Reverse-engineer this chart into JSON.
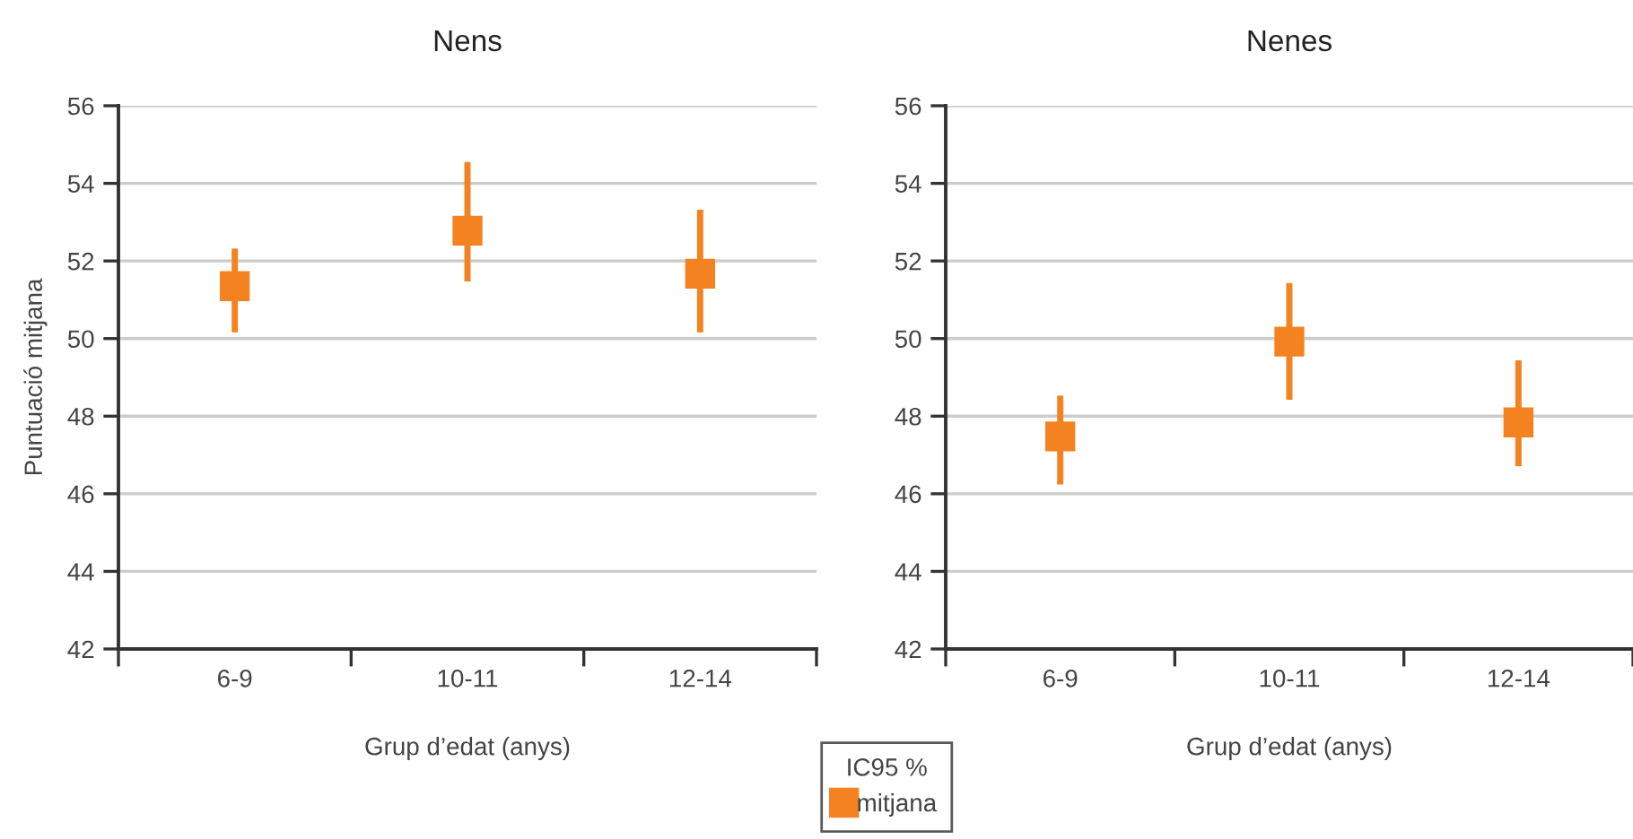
{
  "chart_data": [
    {
      "type": "scatter",
      "title": "Nens",
      "xlabel": "Grup d’edat (anys)",
      "ylabel": "Puntuació mitjana",
      "categories": [
        "6-9",
        "10-11",
        "12-14"
      ],
      "series": [
        {
          "name": "mitjana",
          "color": "#f58220",
          "values": [
            51.35,
            52.78,
            51.67
          ],
          "errors": [
            [
              50.16,
              52.32
            ],
            [
              51.47,
              54.55
            ],
            [
              50.16,
              53.32
            ]
          ]
        }
      ],
      "ylim": [
        42,
        56
      ],
      "yticks": [
        42,
        44,
        46,
        48,
        50,
        52,
        54,
        56
      ],
      "grid": "y",
      "marker": "square",
      "legend": "bottom",
      "legend_title": "IC95 %"
    },
    {
      "type": "scatter",
      "title": "Nenes",
      "xlabel": "Grup d’edat (anys)",
      "categories": [
        "6-9",
        "10-11",
        "12-14"
      ],
      "series": [
        {
          "color": "#f58220",
          "values": [
            47.48,
            49.92,
            47.84
          ],
          "errors": [
            [
              46.24,
              48.53
            ],
            [
              48.42,
              51.43
            ],
            [
              46.71,
              49.44
            ]
          ]
        }
      ],
      "ylim": [
        42,
        56
      ],
      "yticks": [
        42,
        44,
        46,
        48,
        50,
        52,
        54,
        56
      ],
      "grid": "y",
      "marker": "square"
    }
  ]
}
